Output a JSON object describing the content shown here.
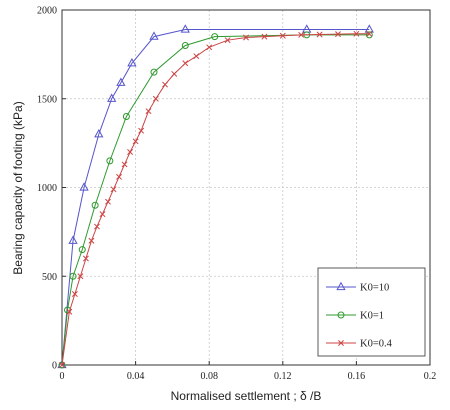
{
  "chart_data": {
    "type": "line",
    "xlabel": "Normalised settlement ; δ /B",
    "ylabel": "Bearing capacity of footing (kPa)",
    "xlim": [
      0,
      0.2
    ],
    "ylim": [
      0,
      2000
    ],
    "xticks": [
      0,
      0.04,
      0.08,
      0.12,
      0.16,
      0.2
    ],
    "xtick_labels": [
      "0",
      "0.04",
      "0.08",
      "0.12",
      "0.16",
      "0.2"
    ],
    "yticks": [
      0,
      500,
      1000,
      1500,
      2000
    ],
    "ytick_labels": [
      "0",
      "500",
      "1000",
      "1500",
      "2000"
    ],
    "grid": true,
    "legend_position": "bottom-right",
    "series": [
      {
        "name": "K0=10",
        "color": "#5555cc",
        "marker": "triangle",
        "x": [
          0,
          0.006,
          0.012,
          0.02,
          0.027,
          0.032,
          0.038,
          0.05,
          0.067,
          0.133,
          0.167
        ],
        "y": [
          0,
          700,
          1000,
          1300,
          1500,
          1590,
          1700,
          1850,
          1890,
          1890,
          1890
        ]
      },
      {
        "name": "K0=1",
        "color": "#2e9a2e",
        "marker": "circle",
        "x": [
          0,
          0.003,
          0.006,
          0.011,
          0.018,
          0.026,
          0.035,
          0.05,
          0.067,
          0.083,
          0.133,
          0.167
        ],
        "y": [
          0,
          310,
          500,
          650,
          900,
          1150,
          1400,
          1650,
          1800,
          1850,
          1860,
          1860
        ]
      },
      {
        "name": "K0=0.4",
        "color": "#cc4444",
        "marker": "x",
        "x": [
          0,
          0.004,
          0.007,
          0.01,
          0.013,
          0.016,
          0.019,
          0.022,
          0.025,
          0.028,
          0.031,
          0.034,
          0.037,
          0.04,
          0.043,
          0.047,
          0.051,
          0.056,
          0.061,
          0.067,
          0.073,
          0.08,
          0.09,
          0.1,
          0.11,
          0.12,
          0.13,
          0.14,
          0.15,
          0.16,
          0.167
        ],
        "y": [
          0,
          300,
          400,
          500,
          600,
          700,
          780,
          850,
          920,
          990,
          1060,
          1130,
          1200,
          1260,
          1320,
          1430,
          1500,
          1580,
          1640,
          1700,
          1740,
          1790,
          1830,
          1845,
          1850,
          1855,
          1860,
          1862,
          1864,
          1866,
          1866
        ]
      }
    ]
  }
}
